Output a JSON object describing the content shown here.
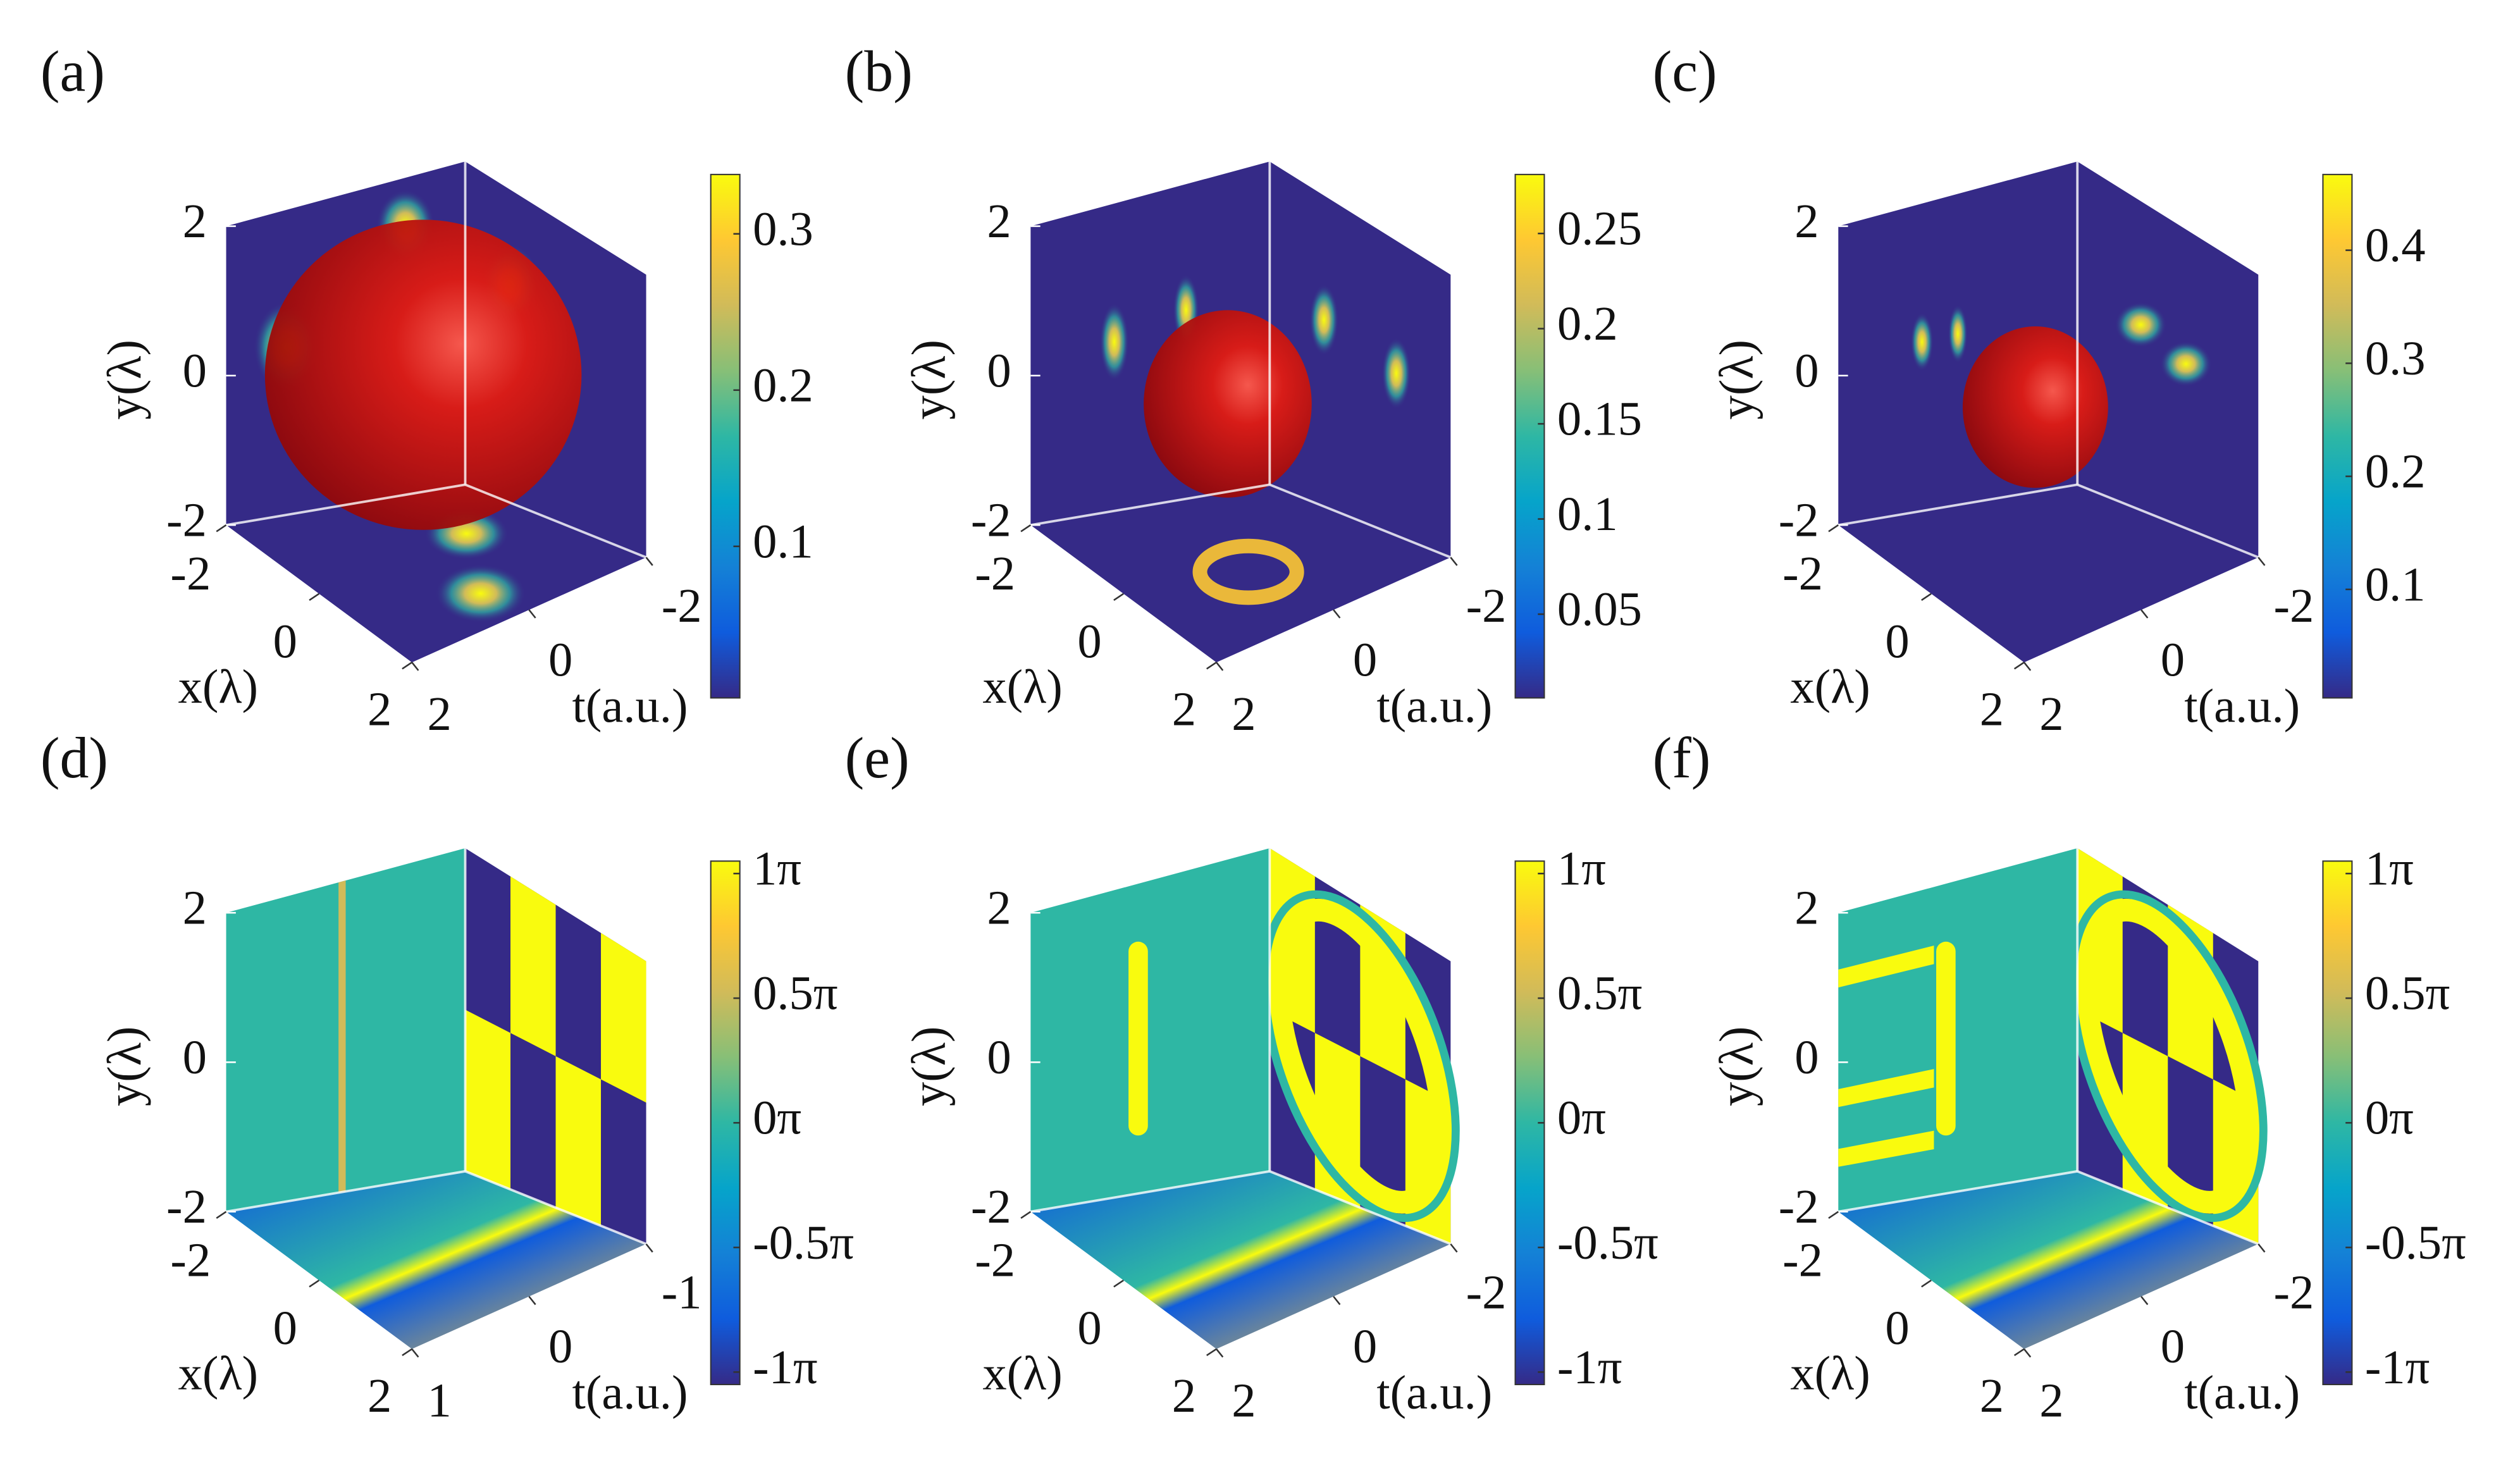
{
  "chart_data": [
    {
      "type": "isosurface",
      "panel_label": "(a)",
      "xlabel": "x(λ)",
      "ylabel": "y(λ)",
      "tlabel": "t(a.u.)",
      "xlim": [
        -2,
        2
      ],
      "xticks": [
        -2,
        0,
        2
      ],
      "ylim": [
        -2,
        2
      ],
      "yticks": [
        -2,
        0,
        2
      ],
      "tlim": [
        -2,
        2
      ],
      "tticks": [
        -2,
        0,
        2
      ],
      "clim": [
        0.003,
        0.338
      ],
      "cticks": [
        0.1,
        0.2,
        0.3
      ],
      "colormap": [
        "#352a87",
        "#0f5cdd",
        "#1481d6",
        "#06a4ca",
        "#2eb7a4",
        "#87bf77",
        "#d1bb59",
        "#fec832",
        "#f9fb0e"
      ]
    },
    {
      "type": "isosurface",
      "panel_label": "(b)",
      "xlabel": "x(λ)",
      "ylabel": "y(λ)",
      "tlabel": "t(a.u.)",
      "xlim": [
        -2,
        2
      ],
      "xticks": [
        -2,
        0,
        2
      ],
      "ylim": [
        -2,
        2
      ],
      "yticks": [
        -2,
        0,
        2
      ],
      "tlim": [
        -2,
        2
      ],
      "tticks": [
        -2,
        0,
        2
      ],
      "clim": [
        0.006,
        0.281
      ],
      "cticks": [
        0.05,
        0.1,
        0.15,
        0.2,
        0.25
      ],
      "colormap": [
        "#352a87",
        "#0f5cdd",
        "#1481d6",
        "#06a4ca",
        "#2eb7a4",
        "#87bf77",
        "#d1bb59",
        "#fec832",
        "#f9fb0e"
      ]
    },
    {
      "type": "isosurface",
      "panel_label": "(c)",
      "xlabel": "x(λ)",
      "ylabel": "y(λ)",
      "tlabel": "t(a.u.)",
      "xlim": [
        -2,
        2
      ],
      "xticks": [
        -2,
        0,
        2
      ],
      "ylim": [
        -2,
        2
      ],
      "yticks": [
        -2,
        0,
        2
      ],
      "tlim": [
        -2,
        2
      ],
      "tticks": [
        -2,
        0,
        2
      ],
      "clim": [
        0.004,
        0.467
      ],
      "cticks": [
        0.1,
        0.2,
        0.3,
        0.4
      ],
      "colormap": [
        "#352a87",
        "#0f5cdd",
        "#1481d6",
        "#06a4ca",
        "#2eb7a4",
        "#87bf77",
        "#d1bb59",
        "#fec832",
        "#f9fb0e"
      ]
    },
    {
      "type": "phase",
      "panel_label": "(d)",
      "xlabel": "x(λ)",
      "ylabel": "y(λ)",
      "tlabel": "t(a.u.)",
      "xlim": [
        -2,
        2
      ],
      "xticks": [
        -2,
        0,
        2
      ],
      "ylim": [
        -2,
        2
      ],
      "yticks": [
        -2,
        0,
        2
      ],
      "tlim": [
        -1,
        1
      ],
      "tticks": [
        -1,
        0,
        1
      ],
      "clim": [
        -1.05,
        1.05
      ],
      "cticks": [
        {
          "value": -1,
          "label": "-1π"
        },
        {
          "value": -0.5,
          "label": "-0.5π"
        },
        {
          "value": 0,
          "label": "0π"
        },
        {
          "value": 0.5,
          "label": "0.5π"
        },
        {
          "value": 1,
          "label": "1π"
        }
      ],
      "colormap": [
        "#352a87",
        "#0f5cdd",
        "#1481d6",
        "#06a4ca",
        "#2eb7a4",
        "#87bf77",
        "#d1bb59",
        "#fec832",
        "#f9fb0e"
      ]
    },
    {
      "type": "phase",
      "panel_label": "(e)",
      "xlabel": "x(λ)",
      "ylabel": "y(λ)",
      "tlabel": "t(a.u.)",
      "xlim": [
        -2,
        2
      ],
      "xticks": [
        -2,
        0,
        2
      ],
      "ylim": [
        -2,
        2
      ],
      "yticks": [
        -2,
        0,
        2
      ],
      "tlim": [
        -2,
        2
      ],
      "tticks": [
        -2,
        0,
        2
      ],
      "clim": [
        -1.05,
        1.05
      ],
      "cticks": [
        {
          "value": -1,
          "label": "-1π"
        },
        {
          "value": -0.5,
          "label": "-0.5π"
        },
        {
          "value": 0,
          "label": "0π"
        },
        {
          "value": 0.5,
          "label": "0.5π"
        },
        {
          "value": 1,
          "label": "1π"
        }
      ],
      "colormap": [
        "#352a87",
        "#0f5cdd",
        "#1481d6",
        "#06a4ca",
        "#2eb7a4",
        "#87bf77",
        "#d1bb59",
        "#fec832",
        "#f9fb0e"
      ]
    },
    {
      "type": "phase",
      "panel_label": "(f)",
      "xlabel": "x(λ)",
      "ylabel": "y(λ)",
      "tlabel": "t(a.u.)",
      "xlim": [
        -2,
        2
      ],
      "xticks": [
        -2,
        0,
        2
      ],
      "ylim": [
        -2,
        2
      ],
      "yticks": [
        -2,
        0,
        2
      ],
      "tlim": [
        -2,
        2
      ],
      "tticks": [
        -2,
        0,
        2
      ],
      "clim": [
        -1.05,
        1.05
      ],
      "cticks": [
        {
          "value": -1,
          "label": "-1π"
        },
        {
          "value": -0.5,
          "label": "-0.5π"
        },
        {
          "value": 0,
          "label": "0π"
        },
        {
          "value": 0.5,
          "label": "0.5π"
        },
        {
          "value": 1,
          "label": "1π"
        }
      ],
      "colormap": [
        "#352a87",
        "#0f5cdd",
        "#1481d6",
        "#06a4ca",
        "#2eb7a4",
        "#87bf77",
        "#d1bb59",
        "#fec832",
        "#f9fb0e"
      ]
    }
  ]
}
